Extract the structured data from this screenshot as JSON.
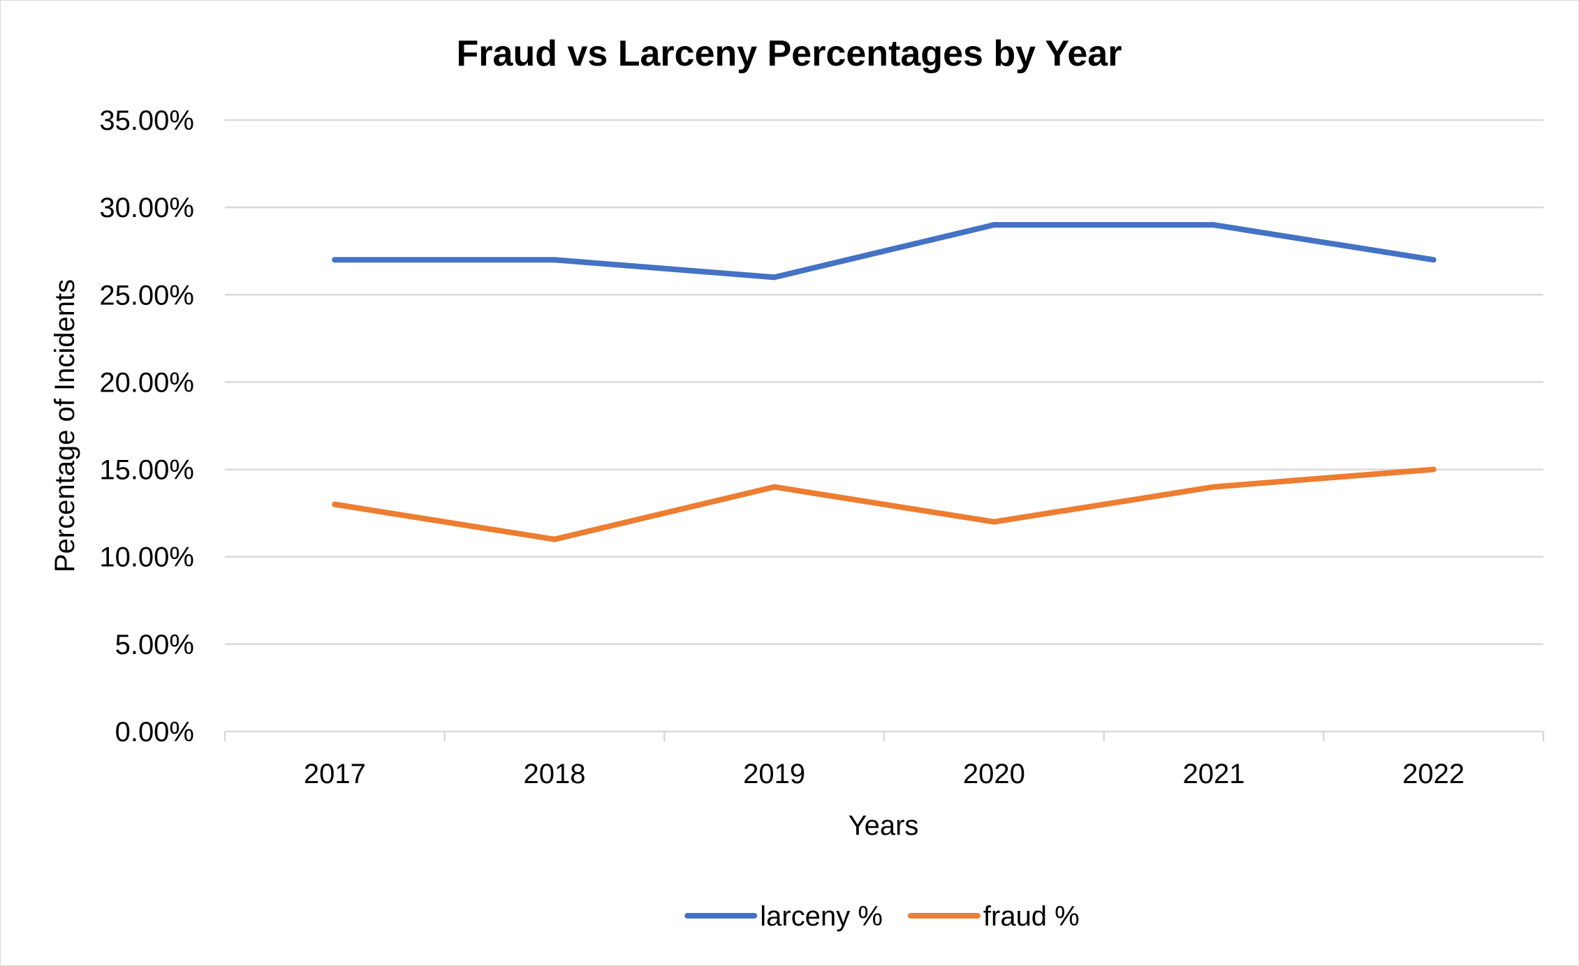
{
  "chart_data": {
    "type": "line",
    "title": "Fraud vs Larceny Percentages by Year",
    "xlabel": "Years",
    "ylabel": "Percentage of Incidents",
    "categories": [
      "2017",
      "2018",
      "2019",
      "2020",
      "2021",
      "2022"
    ],
    "ylim": [
      0,
      0.35
    ],
    "y_ticks": [
      "0.00%",
      "5.00%",
      "10.00%",
      "15.00%",
      "20.00%",
      "25.00%",
      "30.00%",
      "35.00%"
    ],
    "y_tick_values": [
      0,
      0.05,
      0.1,
      0.15,
      0.2,
      0.25,
      0.3,
      0.35
    ],
    "grid": true,
    "legend_position": "bottom",
    "series": [
      {
        "name": "larceny %",
        "color": "#4472C4",
        "values": [
          0.27,
          0.27,
          0.26,
          0.29,
          0.29,
          0.27
        ]
      },
      {
        "name": "fraud %",
        "color": "#ED7D31",
        "values": [
          0.13,
          0.11,
          0.14,
          0.12,
          0.14,
          0.15
        ]
      }
    ]
  }
}
